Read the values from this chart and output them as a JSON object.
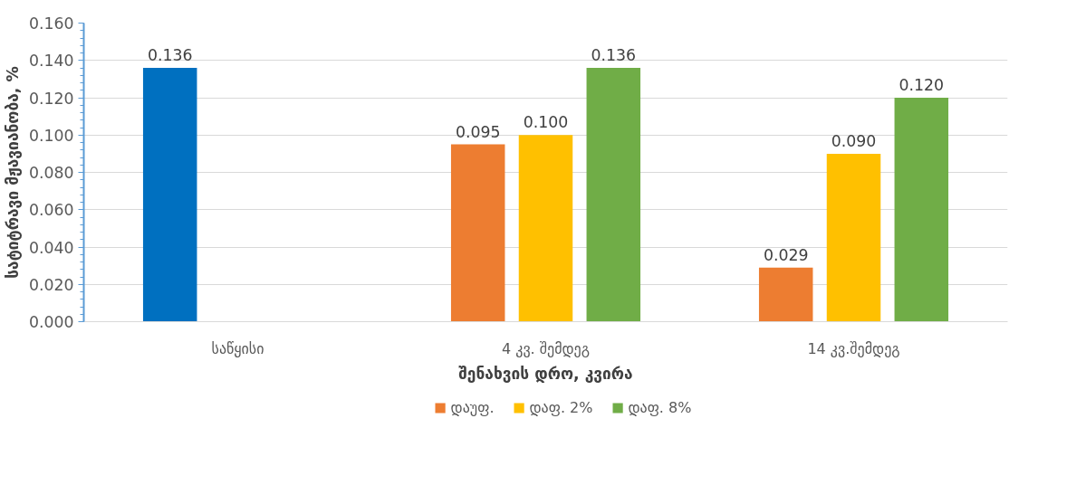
{
  "chart_data": {
    "type": "bar",
    "xlabel": "შენახვის დრო, კვირა",
    "ylabel": "სატიტრავი მჟავიანობა, %",
    "categories": [
      "საწყისი",
      "4 კვ. შემდეგ",
      "14 კვ.შემდეგ"
    ],
    "series": [
      {
        "name": "დაუფ.",
        "color": "#ed7d31",
        "colors": [
          "#0070c0",
          "#ed7d31",
          "#ed7d31"
        ],
        "values": [
          0.136,
          0.095,
          0.029
        ],
        "value_labels": [
          "0.136",
          "0.095",
          "0.029"
        ]
      },
      {
        "name": "დაფ. 2%",
        "color": "#ffc000",
        "values": [
          null,
          0.1,
          0.09
        ],
        "value_labels": [
          null,
          "0.100",
          "0.090"
        ]
      },
      {
        "name": "დაფ. 8%",
        "color": "#70ad47",
        "values": [
          null,
          0.136,
          0.12
        ],
        "value_labels": [
          null,
          "0.136",
          "0.120"
        ]
      }
    ],
    "ylim": [
      0,
      0.16
    ],
    "yticks": [
      "0.000",
      "0.020",
      "0.040",
      "0.060",
      "0.080",
      "0.100",
      "0.120",
      "0.140",
      "0.160"
    ],
    "grid": "y",
    "legend": "bottom"
  }
}
